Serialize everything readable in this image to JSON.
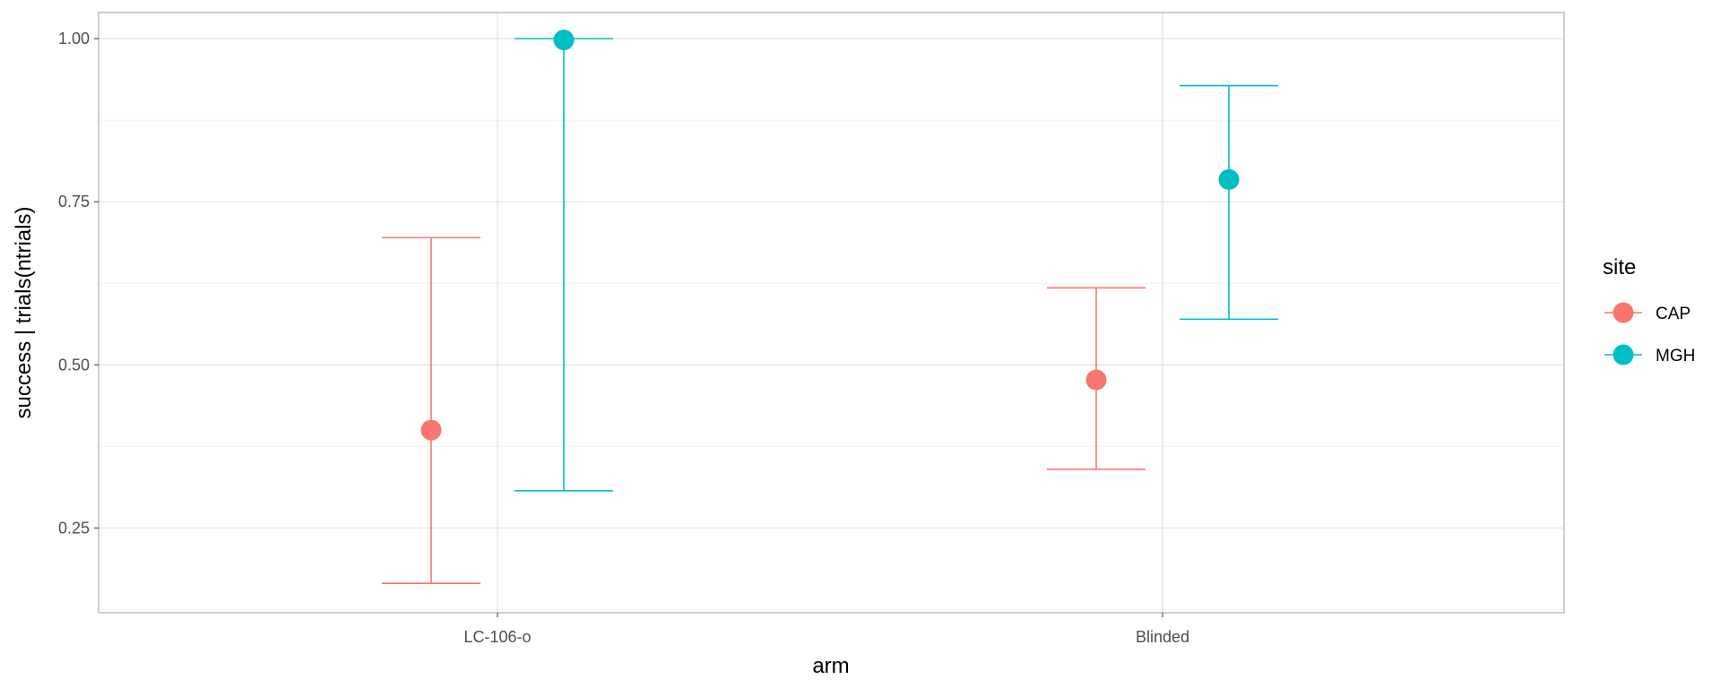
{
  "chart_data": {
    "type": "scatter",
    "subtype": "pointrange-errorbar",
    "xlabel": "arm",
    "ylabel": "success | trials(ntrials)",
    "categories": [
      "LC-106-o",
      "Blinded"
    ],
    "ylim": [
      0.12,
      1.04
    ],
    "yticks": [
      0.25,
      0.5,
      0.75,
      1.0
    ],
    "ytick_labels": [
      "0.25",
      "0.50",
      "0.75",
      "1.00"
    ],
    "grid": true,
    "legend": {
      "title": "site",
      "position": "right"
    },
    "series": [
      {
        "name": "CAP",
        "color": "#F8766D",
        "points": [
          {
            "category": "LC-106-o",
            "estimate": 0.4,
            "lower": 0.165,
            "upper": 0.695
          },
          {
            "category": "Blinded",
            "estimate": 0.477,
            "lower": 0.34,
            "upper": 0.618
          }
        ]
      },
      {
        "name": "MGH",
        "color": "#00BFC4",
        "points": [
          {
            "category": "LC-106-o",
            "estimate": 0.998,
            "lower": 0.307,
            "upper": 1.0
          },
          {
            "category": "Blinded",
            "estimate": 0.784,
            "lower": 0.57,
            "upper": 0.928
          }
        ]
      }
    ]
  }
}
